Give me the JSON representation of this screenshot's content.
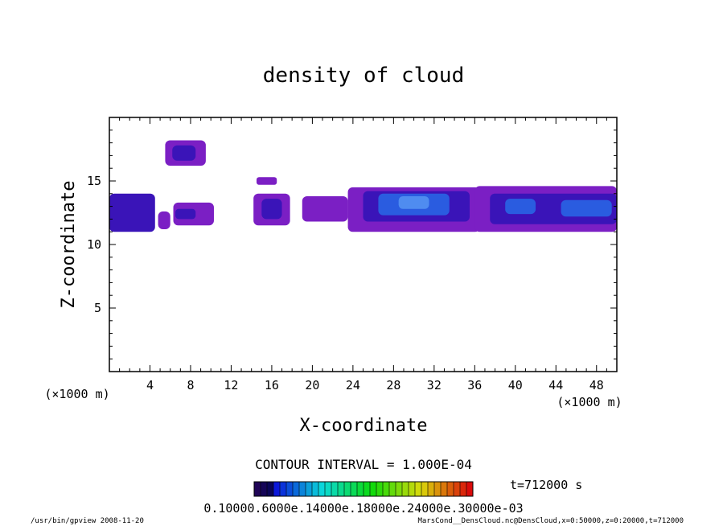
{
  "chart_data": {
    "type": "heatmap",
    "title": "density of cloud",
    "xlabel": "X-coordinate",
    "ylabel": "Z-coordinate",
    "x_unit_left": "(×1000 m)",
    "x_unit_right": "(×1000 m)",
    "xlim": [
      0,
      50
    ],
    "ylim": [
      0,
      20
    ],
    "xticks": [
      "4",
      "8",
      "12",
      "16",
      "20",
      "24",
      "28",
      "32",
      "36",
      "40",
      "44",
      "48"
    ],
    "yticks": [
      "5",
      "10",
      "15"
    ],
    "contour_interval": "CONTOUR INTERVAL = 1.000E-04",
    "time_label": "t=712000 s",
    "colorbar_labels": "0.10000.6000e.14000e.18000e.24000e.30000e-03",
    "footer_left": "/usr/bin/gpview   2008-11-20",
    "footer_right": "MarsCond__DensCloud.nc@DensCloud,x=0:50000,z=0:20000,t=712000",
    "colors": {
      "low": "#7b1fc4",
      "mid": "#3a14b8",
      "high": "#2a5ce0",
      "peak": "#4f8cf0"
    },
    "cloud_regions": [
      {
        "x0": 0.0,
        "x1": 4.5,
        "z0": 11.0,
        "z1": 14.0,
        "level": "mid"
      },
      {
        "x0": 4.8,
        "x1": 6.0,
        "z0": 11.2,
        "z1": 12.6,
        "level": "low"
      },
      {
        "x0": 5.5,
        "x1": 9.5,
        "z0": 16.2,
        "z1": 18.2,
        "level": "low"
      },
      {
        "x0": 6.2,
        "x1": 8.5,
        "z0": 16.6,
        "z1": 17.8,
        "level": "mid"
      },
      {
        "x0": 6.3,
        "x1": 10.3,
        "z0": 11.5,
        "z1": 13.3,
        "level": "low"
      },
      {
        "x0": 6.5,
        "x1": 8.5,
        "z0": 12.0,
        "z1": 12.8,
        "level": "mid"
      },
      {
        "x0": 14.5,
        "x1": 16.5,
        "z0": 14.7,
        "z1": 15.3,
        "level": "low"
      },
      {
        "x0": 14.2,
        "x1": 17.8,
        "z0": 11.5,
        "z1": 14.0,
        "level": "low"
      },
      {
        "x0": 15.0,
        "x1": 17.0,
        "z0": 12.0,
        "z1": 13.6,
        "level": "mid"
      },
      {
        "x0": 19.0,
        "x1": 23.5,
        "z0": 11.8,
        "z1": 13.8,
        "level": "low"
      },
      {
        "x0": 23.5,
        "x1": 36.5,
        "z0": 11.0,
        "z1": 14.5,
        "level": "low"
      },
      {
        "x0": 25.0,
        "x1": 35.5,
        "z0": 11.8,
        "z1": 14.2,
        "level": "mid"
      },
      {
        "x0": 26.5,
        "x1": 33.5,
        "z0": 12.3,
        "z1": 14.0,
        "level": "high"
      },
      {
        "x0": 28.5,
        "x1": 31.5,
        "z0": 12.8,
        "z1": 13.8,
        "level": "peak"
      },
      {
        "x0": 36.0,
        "x1": 50.0,
        "z0": 11.0,
        "z1": 14.6,
        "level": "low"
      },
      {
        "x0": 37.5,
        "x1": 50.0,
        "z0": 11.6,
        "z1": 14.0,
        "level": "mid"
      },
      {
        "x0": 39.0,
        "x1": 42.0,
        "z0": 12.4,
        "z1": 13.6,
        "level": "high"
      },
      {
        "x0": 44.5,
        "x1": 49.5,
        "z0": 12.2,
        "z1": 13.5,
        "level": "high"
      }
    ]
  }
}
